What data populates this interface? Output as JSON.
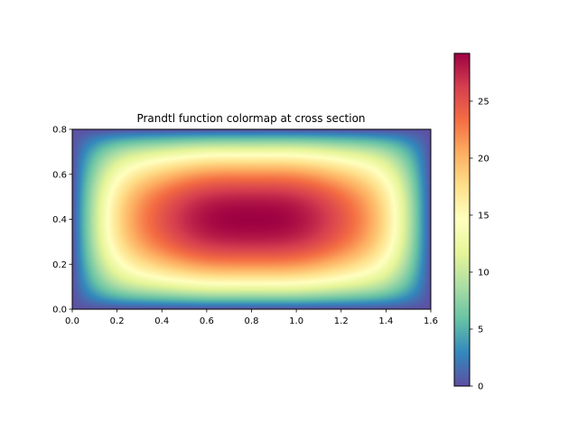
{
  "chart_data": {
    "type": "heatmap",
    "title": "Prandtl function colormap at cross section",
    "xlabel": "",
    "ylabel": "",
    "x_range": [
      0.0,
      1.6
    ],
    "y_range": [
      0.0,
      0.8
    ],
    "x_ticks": [
      "0.0",
      "0.2",
      "0.4",
      "0.6",
      "0.8",
      "1.0",
      "1.2",
      "1.4",
      "1.6"
    ],
    "y_ticks": [
      "0.0",
      "0.2",
      "0.4",
      "0.6",
      "0.8"
    ],
    "colormap": "Spectral_r",
    "colorbar": {
      "range": [
        0,
        29.2
      ],
      "ticks": [
        "0",
        "5",
        "10",
        "15",
        "20",
        "25"
      ]
    },
    "peak_value": 29.2,
    "peak_location": [
      0.8,
      0.4
    ],
    "grid": false,
    "colors": [
      "#5e4fa2",
      "#3288bd",
      "#66c2a5",
      "#abdda4",
      "#e6f598",
      "#ffffbf",
      "#fee08b",
      "#fdae61",
      "#f46d43",
      "#d53e4f",
      "#9e0142"
    ]
  }
}
